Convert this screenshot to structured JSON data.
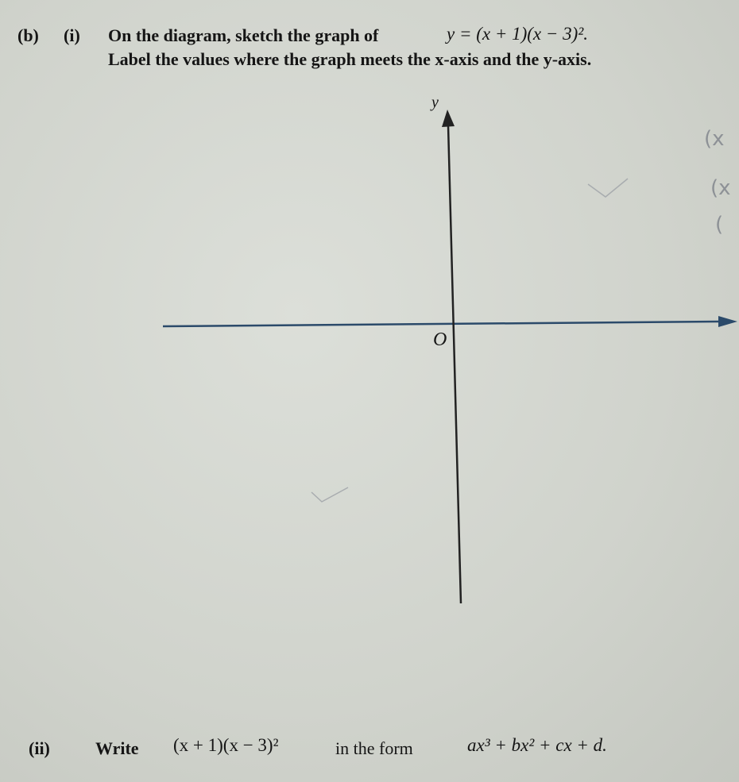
{
  "part_b": {
    "label": "(b)",
    "part_i": {
      "label": "(i)",
      "line1": "On the diagram, sketch the graph of",
      "equation": "y = (x + 1)(x − 3)².",
      "line2": "Label the values where the graph meets the x-axis and the y-axis."
    },
    "diagram": {
      "y_axis_label": "y",
      "origin_label": "O"
    },
    "handwritten_notes": [
      "(x",
      "(x",
      "("
    ],
    "part_ii": {
      "label": "(ii)",
      "instruction": "Write",
      "expression": "(x + 1)(x − 3)²",
      "connector": "in the form",
      "target_form": "ax³ + bx² + cx + d."
    }
  }
}
